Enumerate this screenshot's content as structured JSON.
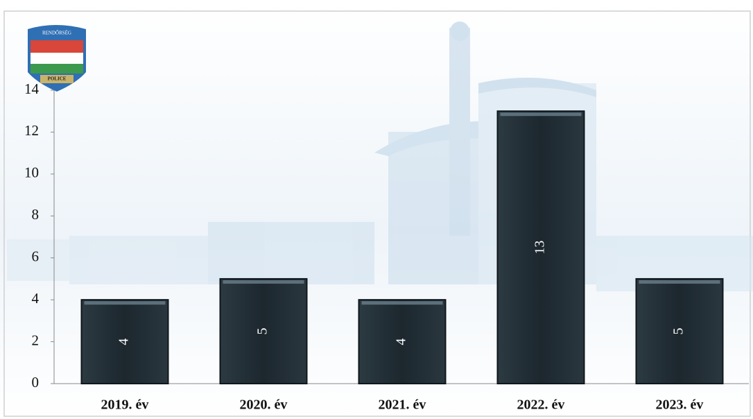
{
  "chart_data": {
    "type": "bar",
    "logo": {
      "top": "RENDŐRSÉG",
      "bottom": "POLICE"
    },
    "categories": [
      "2019. év",
      "2020. év",
      "2021. év",
      "2022. év",
      "2023. év"
    ],
    "values": [
      4,
      5,
      4,
      13,
      5
    ],
    "color": "#1f2b33",
    "ylim": [
      0,
      14
    ],
    "yticks": [
      0,
      2,
      4,
      6,
      8,
      10,
      12,
      14
    ],
    "data_labels": true
  }
}
